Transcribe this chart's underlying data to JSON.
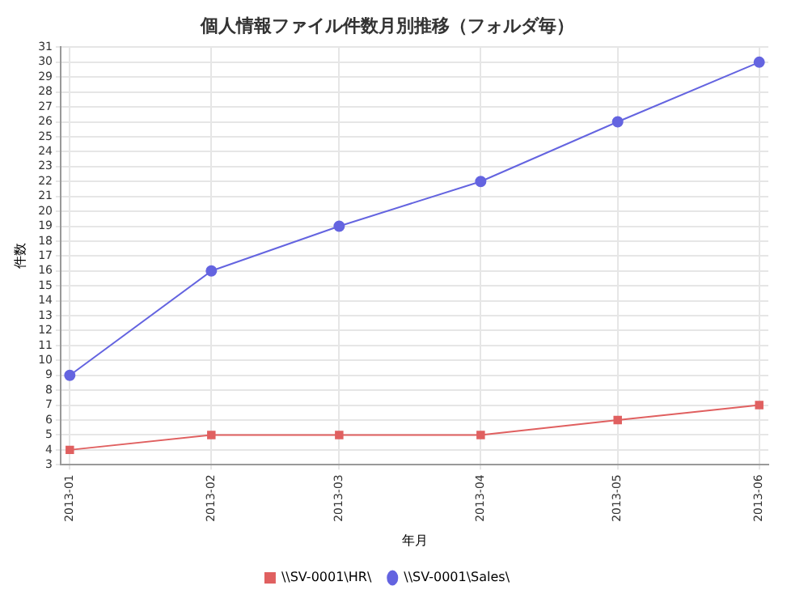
{
  "chart_data": {
    "type": "line",
    "title": "個人情報ファイル件数月別推移（フォルダ毎）",
    "xlabel": "年月",
    "ylabel": "件数",
    "x": [
      "2013-01",
      "2013-02",
      "2013-03",
      "2013-04",
      "2013-05",
      "2013-06"
    ],
    "series": [
      {
        "name": "\\\\SV-0001\\HR\\",
        "color": "#e06060",
        "values": [
          4,
          5,
          5,
          5,
          6,
          7
        ],
        "marker": "square"
      },
      {
        "name": "\\\\SV-0001\\Sales\\",
        "color": "#6464e0",
        "values": [
          9,
          16,
          19,
          22,
          26,
          30
        ],
        "marker": "circle"
      }
    ],
    "xlim": [
      "2012-12-30",
      "2013-06-03"
    ],
    "xticks": [
      "2013-01",
      "2013-02",
      "2013-03",
      "2013-04",
      "2013-05",
      "2013-06"
    ],
    "ylim": [
      3,
      31
    ],
    "yticks": [
      3,
      4,
      5,
      6,
      7,
      8,
      9,
      10,
      11,
      12,
      13,
      14,
      15,
      16,
      17,
      18,
      19,
      20,
      21,
      22,
      23,
      24,
      25,
      26,
      27,
      28,
      29,
      30,
      31
    ],
    "grid": true,
    "legend": "bottom",
    "line_style": "solid"
  }
}
